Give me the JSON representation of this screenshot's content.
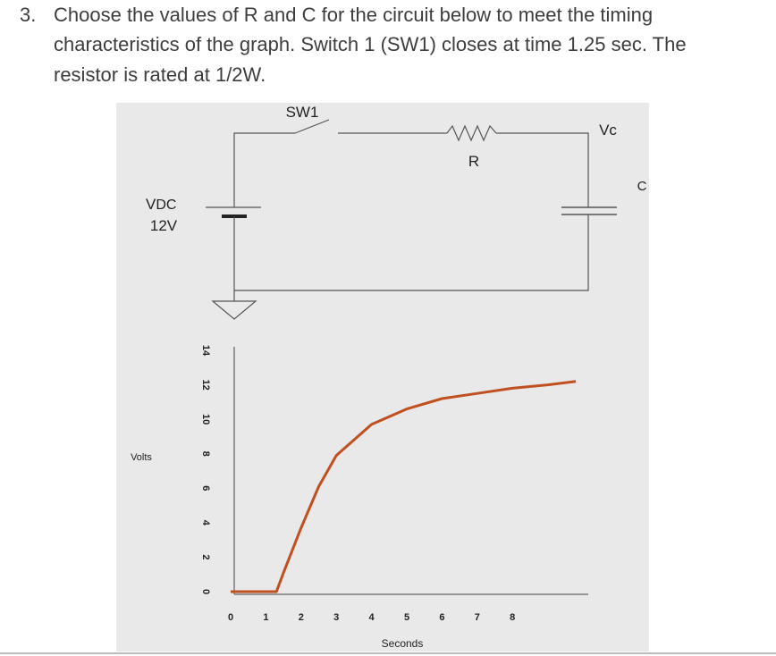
{
  "question": {
    "number": "3.",
    "lines": [
      "Choose the values of R and C for the circuit below to meet the timing",
      "characteristics of the graph.  Switch 1 (SW1) closes at time 1.25 sec.  The",
      "resistor is rated at 1/2W."
    ]
  },
  "circuit": {
    "switch": "SW1",
    "resistor": "R",
    "cap_voltage": "Vc",
    "capacitor": "C",
    "source_name": "V",
    "source_sub": "DC",
    "source_value": "12V"
  },
  "chart_data": {
    "type": "line",
    "x_label": "Seconds",
    "y_label": "Volts",
    "x": [
      0,
      1.3,
      1.5,
      2,
      2.5,
      3,
      4,
      5,
      6,
      7,
      8,
      9,
      9.8
    ],
    "series": [
      {
        "color": "#c0501f",
        "values": [
          0,
          0,
          1.1,
          3.7,
          6.1,
          7.9,
          9.7,
          10.6,
          11.2,
          11.5,
          11.8,
          12.0,
          12.2
        ]
      }
    ],
    "xlim": [
      0,
      10
    ],
    "ylim": [
      0,
      14
    ],
    "xticks": [
      0,
      1,
      2,
      3,
      4,
      5,
      6,
      7,
      8
    ],
    "yticks": [
      0,
      2,
      4,
      6,
      8,
      10,
      12,
      14
    ]
  }
}
